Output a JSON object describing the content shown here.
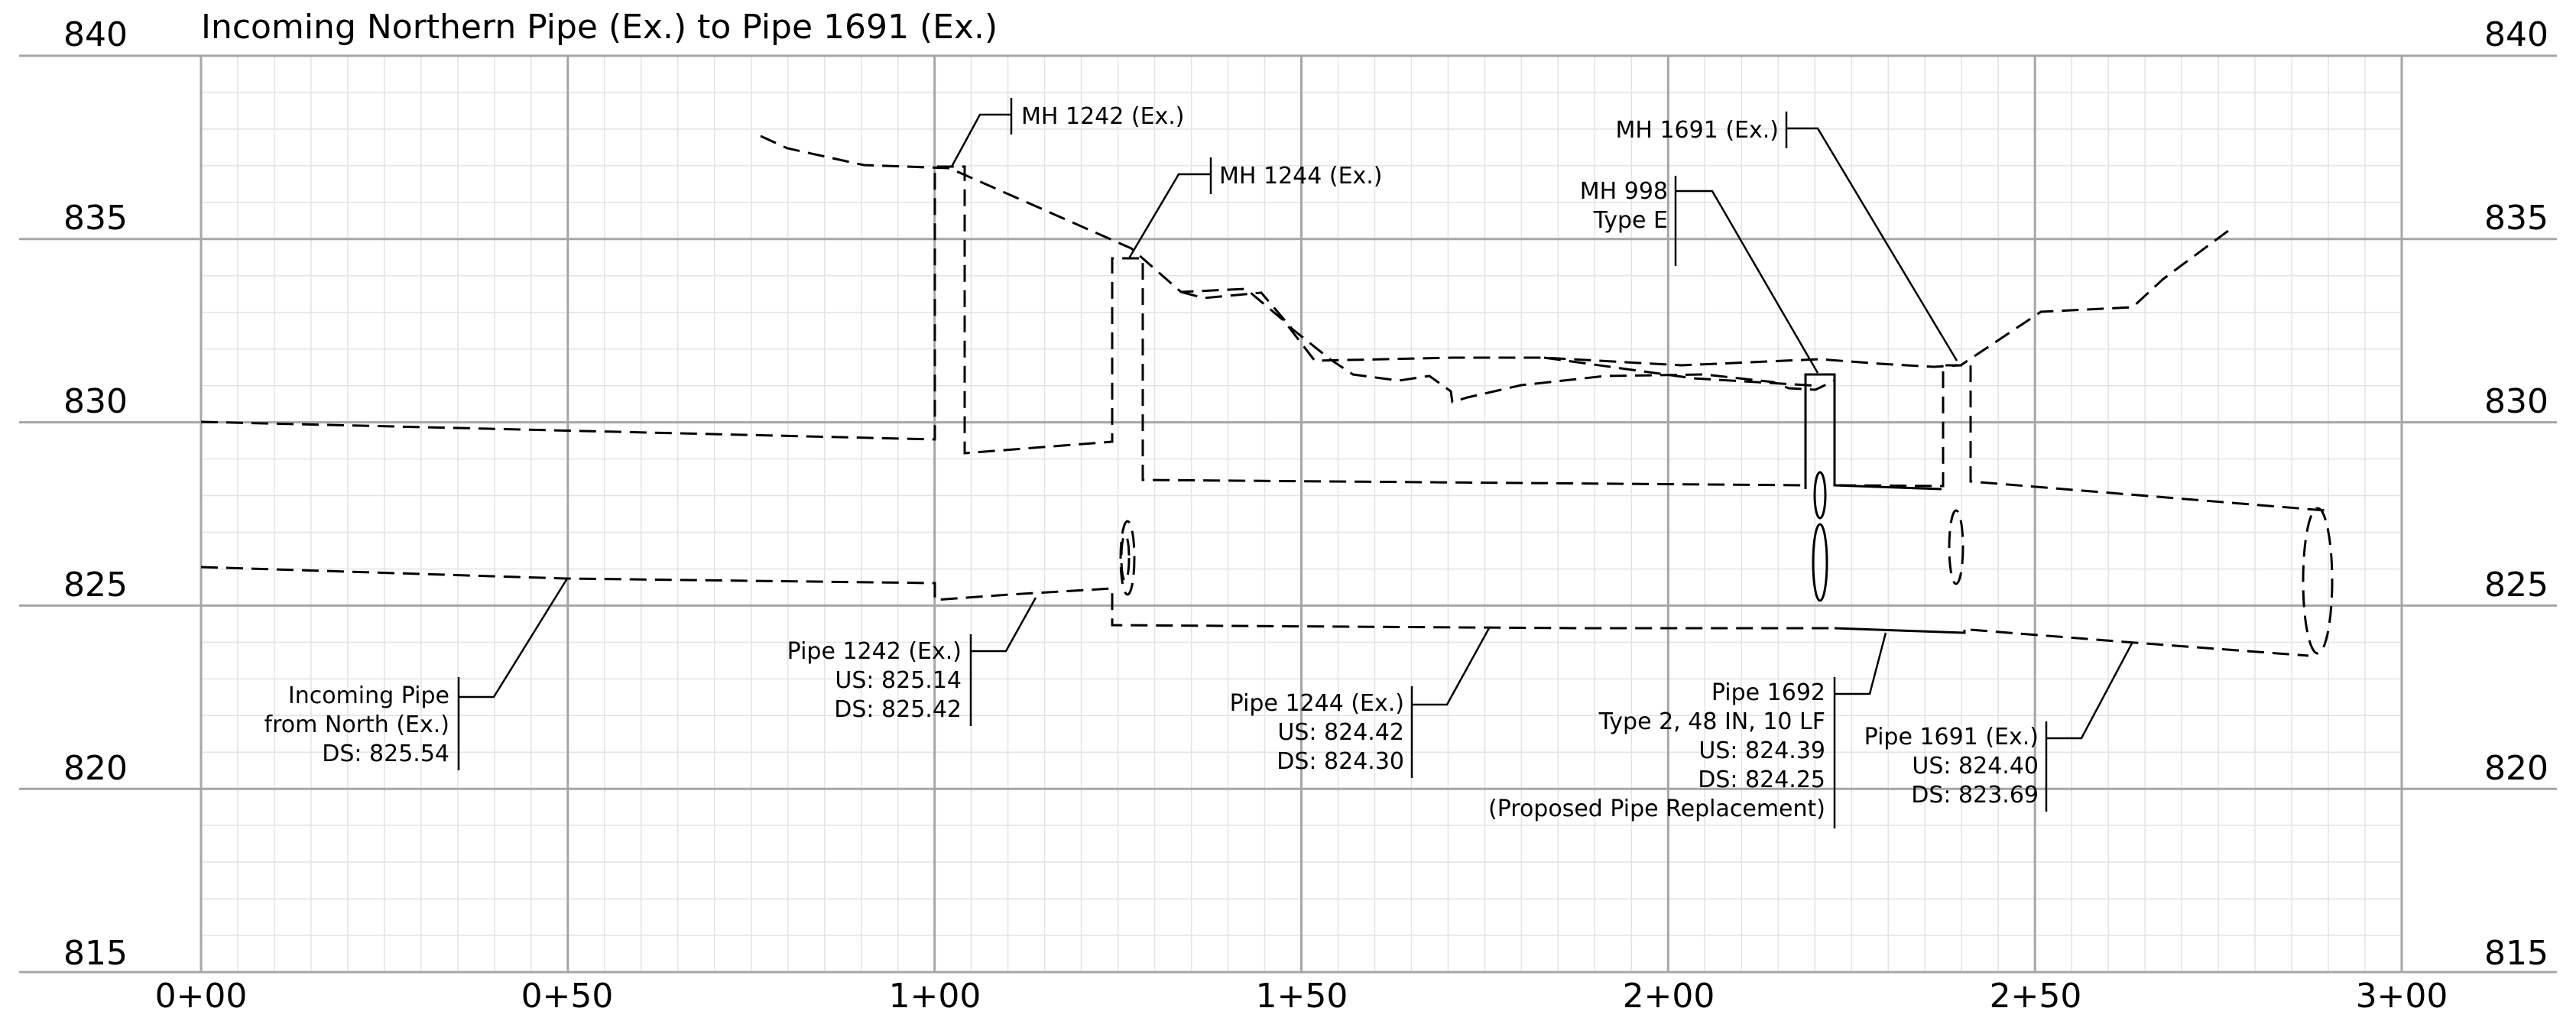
{
  "title": "Incoming Northern Pipe (Ex.) to Pipe 1691 (Ex.)",
  "elevation_labels": [
    "840",
    "835",
    "830",
    "825",
    "820",
    "815"
  ],
  "station_labels": [
    "0+00",
    "0+50",
    "1+00",
    "1+50",
    "2+00",
    "2+50",
    "3+00"
  ],
  "callouts": {
    "mh1242": [
      "MH 1242 (Ex.)"
    ],
    "mh1244": [
      "MH 1244 (Ex.)"
    ],
    "mh1691": [
      "MH 1691 (Ex.)"
    ],
    "mh998": [
      "MH 998",
      "Type E"
    ],
    "incoming_pipe": [
      "Incoming Pipe",
      "from North (Ex.)",
      "DS: 825.54"
    ],
    "pipe1242": [
      "Pipe 1242 (Ex.)",
      "US: 825.14",
      "DS: 825.42"
    ],
    "pipe1244": [
      "Pipe 1244 (Ex.)",
      "US: 824.42",
      "DS: 824.30"
    ],
    "pipe1692": [
      "Pipe 1692",
      "Type 2, 48 IN, 10 LF",
      "US: 824.39",
      "DS: 824.25",
      "(Proposed Pipe Replacement)"
    ],
    "pipe1691": [
      "Pipe 1691 (Ex.)",
      "US: 824.40",
      "DS: 823.69"
    ]
  }
}
